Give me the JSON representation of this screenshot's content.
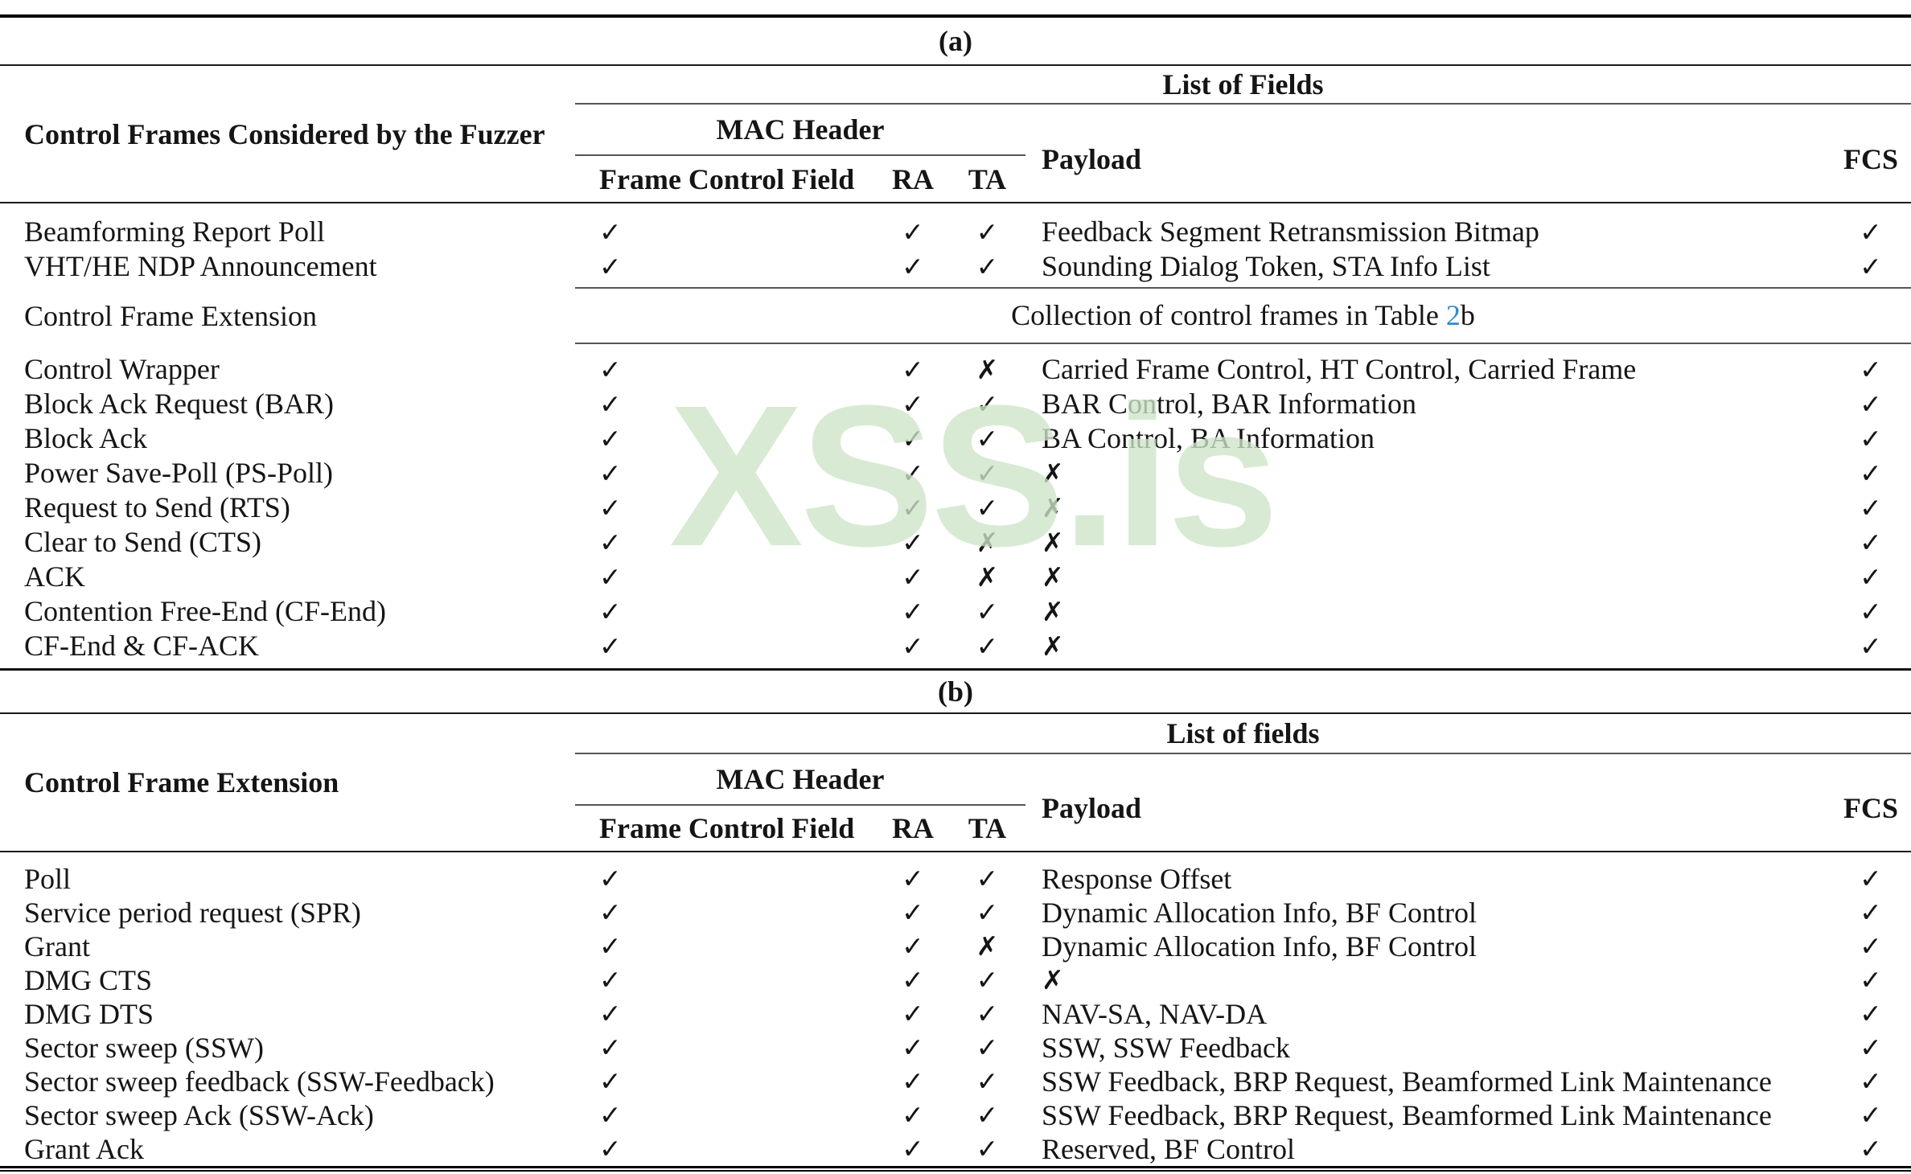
{
  "watermark": "XSS.is",
  "colors": {
    "link_blue": "#2e8bc9",
    "watermark_green": "#cde4c7"
  },
  "marks": {
    "check": "✓",
    "cross": "✗"
  },
  "table_a": {
    "caption": "(a)",
    "header": {
      "row_group_label": "Control Frames Considered by the Fuzzer",
      "list_of_fields": "List of Fields",
      "mac_header": "MAC Header",
      "frame_control_field": "Frame Control Field",
      "ra": "RA",
      "ta": "TA",
      "payload": "Payload",
      "fcs": "FCS"
    },
    "rows_top": [
      {
        "label": "Beamforming Report Poll",
        "fcf": "✓",
        "ra": "✓",
        "ta": "✓",
        "payload": "Feedback Segment Retransmission Bitmap",
        "fcs": "✓"
      },
      {
        "label": "VHT/HE NDP Announcement",
        "fcf": "✓",
        "ra": "✓",
        "ta": "✓",
        "payload": "Sounding Dialog Token, STA Info List",
        "fcs": "✓"
      }
    ],
    "extension_row": {
      "label": "Control Frame Extension",
      "text_prefix": "Collection of control frames in Table ",
      "link_text": "2",
      "text_suffix": "b"
    },
    "rows_bottom": [
      {
        "label": "Control Wrapper",
        "fcf": "✓",
        "ra": "✓",
        "ta": "✗",
        "payload": "Carried Frame Control, HT Control, Carried Frame",
        "fcs": "✓"
      },
      {
        "label": "Block Ack Request (BAR)",
        "fcf": "✓",
        "ra": "✓",
        "ta": "✓",
        "payload": "BAR Control, BAR Information",
        "fcs": "✓"
      },
      {
        "label": "Block Ack",
        "fcf": "✓",
        "ra": "✓",
        "ta": "✓",
        "payload": "BA Control, BA Information",
        "fcs": "✓"
      },
      {
        "label": "Power Save-Poll (PS-Poll)",
        "fcf": "✓",
        "ra": "✓",
        "ta": "✓",
        "payload": "✗",
        "fcs": "✓"
      },
      {
        "label": "Request to Send (RTS)",
        "fcf": "✓",
        "ra": "✓",
        "ta": "✓",
        "payload": "✗",
        "fcs": "✓"
      },
      {
        "label": "Clear to Send (CTS)",
        "fcf": "✓",
        "ra": "✓",
        "ta": "✗",
        "payload": "✗",
        "fcs": "✓"
      },
      {
        "label": "ACK",
        "fcf": "✓",
        "ra": "✓",
        "ta": "✗",
        "payload": "✗",
        "fcs": "✓"
      },
      {
        "label": "Contention Free-End (CF-End)",
        "fcf": "✓",
        "ra": "✓",
        "ta": "✓",
        "payload": "✗",
        "fcs": "✓"
      },
      {
        "label": "CF-End & CF-ACK",
        "fcf": "✓",
        "ra": "✓",
        "ta": "✓",
        "payload": "✗",
        "fcs": "✓"
      }
    ]
  },
  "table_b": {
    "caption": "(b)",
    "header": {
      "row_group_label": "Control Frame Extension",
      "list_of_fields": "List of fields",
      "mac_header": "MAC Header",
      "frame_control_field": "Frame Control Field",
      "ra": "RA",
      "ta": "TA",
      "payload": "Payload",
      "fcs": "FCS"
    },
    "rows": [
      {
        "label": "Poll",
        "fcf": "✓",
        "ra": "✓",
        "ta": "✓",
        "payload": "Response Offset",
        "fcs": "✓"
      },
      {
        "label": "Service period request (SPR)",
        "fcf": "✓",
        "ra": "✓",
        "ta": "✓",
        "payload": "Dynamic Allocation Info, BF Control",
        "fcs": "✓"
      },
      {
        "label": "Grant",
        "fcf": "✓",
        "ra": "✓",
        "ta": "✗",
        "payload": "Dynamic Allocation Info, BF Control",
        "fcs": "✓"
      },
      {
        "label": "DMG CTS",
        "fcf": "✓",
        "ra": "✓",
        "ta": "✓",
        "payload": "✗",
        "fcs": "✓"
      },
      {
        "label": "DMG DTS",
        "fcf": "✓",
        "ra": "✓",
        "ta": "✓",
        "payload": "NAV-SA, NAV-DA",
        "fcs": "✓"
      },
      {
        "label": "Sector sweep (SSW)",
        "fcf": "✓",
        "ra": "✓",
        "ta": "✓",
        "payload": "SSW, SSW Feedback",
        "fcs": "✓"
      },
      {
        "label": "Sector sweep feedback (SSW-Feedback)",
        "fcf": "✓",
        "ra": "✓",
        "ta": "✓",
        "payload": "SSW Feedback, BRP Request, Beamformed Link Maintenance",
        "fcs": "✓"
      },
      {
        "label": "Sector sweep Ack (SSW-Ack)",
        "fcf": "✓",
        "ra": "✓",
        "ta": "✓",
        "payload": "SSW Feedback, BRP Request, Beamformed Link Maintenance",
        "fcs": "✓"
      },
      {
        "label": "Grant Ack",
        "fcf": "✓",
        "ra": "✓",
        "ta": "✓",
        "payload": "Reserved, BF Control",
        "fcs": "✓"
      }
    ]
  }
}
